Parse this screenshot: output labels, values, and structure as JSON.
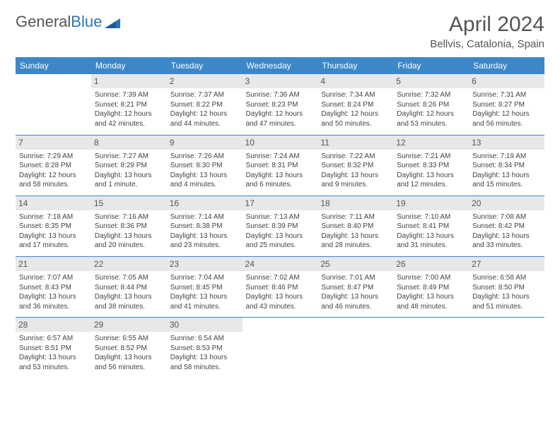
{
  "logo": {
    "text1": "General",
    "text2": "Blue"
  },
  "title": "April 2024",
  "subtitle": "Bellvis, Catalonia, Spain",
  "colors": {
    "header_bg": "#3b87c8",
    "header_fg": "#ffffff",
    "daynum_bg": "#e8e8e8",
    "border": "#3b87c8",
    "logo_blue": "#2f73b6"
  },
  "weekdays": [
    "Sunday",
    "Monday",
    "Tuesday",
    "Wednesday",
    "Thursday",
    "Friday",
    "Saturday"
  ],
  "weeks": [
    [
      {
        "day": "",
        "sunrise": "",
        "sunset": "",
        "daylight1": "",
        "daylight2": ""
      },
      {
        "day": "1",
        "sunrise": "Sunrise: 7:39 AM",
        "sunset": "Sunset: 8:21 PM",
        "daylight1": "Daylight: 12 hours",
        "daylight2": "and 42 minutes."
      },
      {
        "day": "2",
        "sunrise": "Sunrise: 7:37 AM",
        "sunset": "Sunset: 8:22 PM",
        "daylight1": "Daylight: 12 hours",
        "daylight2": "and 44 minutes."
      },
      {
        "day": "3",
        "sunrise": "Sunrise: 7:36 AM",
        "sunset": "Sunset: 8:23 PM",
        "daylight1": "Daylight: 12 hours",
        "daylight2": "and 47 minutes."
      },
      {
        "day": "4",
        "sunrise": "Sunrise: 7:34 AM",
        "sunset": "Sunset: 8:24 PM",
        "daylight1": "Daylight: 12 hours",
        "daylight2": "and 50 minutes."
      },
      {
        "day": "5",
        "sunrise": "Sunrise: 7:32 AM",
        "sunset": "Sunset: 8:26 PM",
        "daylight1": "Daylight: 12 hours",
        "daylight2": "and 53 minutes."
      },
      {
        "day": "6",
        "sunrise": "Sunrise: 7:31 AM",
        "sunset": "Sunset: 8:27 PM",
        "daylight1": "Daylight: 12 hours",
        "daylight2": "and 56 minutes."
      }
    ],
    [
      {
        "day": "7",
        "sunrise": "Sunrise: 7:29 AM",
        "sunset": "Sunset: 8:28 PM",
        "daylight1": "Daylight: 12 hours",
        "daylight2": "and 58 minutes."
      },
      {
        "day": "8",
        "sunrise": "Sunrise: 7:27 AM",
        "sunset": "Sunset: 8:29 PM",
        "daylight1": "Daylight: 13 hours",
        "daylight2": "and 1 minute."
      },
      {
        "day": "9",
        "sunrise": "Sunrise: 7:26 AM",
        "sunset": "Sunset: 8:30 PM",
        "daylight1": "Daylight: 13 hours",
        "daylight2": "and 4 minutes."
      },
      {
        "day": "10",
        "sunrise": "Sunrise: 7:24 AM",
        "sunset": "Sunset: 8:31 PM",
        "daylight1": "Daylight: 13 hours",
        "daylight2": "and 6 minutes."
      },
      {
        "day": "11",
        "sunrise": "Sunrise: 7:22 AM",
        "sunset": "Sunset: 8:32 PM",
        "daylight1": "Daylight: 13 hours",
        "daylight2": "and 9 minutes."
      },
      {
        "day": "12",
        "sunrise": "Sunrise: 7:21 AM",
        "sunset": "Sunset: 8:33 PM",
        "daylight1": "Daylight: 13 hours",
        "daylight2": "and 12 minutes."
      },
      {
        "day": "13",
        "sunrise": "Sunrise: 7:19 AM",
        "sunset": "Sunset: 8:34 PM",
        "daylight1": "Daylight: 13 hours",
        "daylight2": "and 15 minutes."
      }
    ],
    [
      {
        "day": "14",
        "sunrise": "Sunrise: 7:18 AM",
        "sunset": "Sunset: 8:35 PM",
        "daylight1": "Daylight: 13 hours",
        "daylight2": "and 17 minutes."
      },
      {
        "day": "15",
        "sunrise": "Sunrise: 7:16 AM",
        "sunset": "Sunset: 8:36 PM",
        "daylight1": "Daylight: 13 hours",
        "daylight2": "and 20 minutes."
      },
      {
        "day": "16",
        "sunrise": "Sunrise: 7:14 AM",
        "sunset": "Sunset: 8:38 PM",
        "daylight1": "Daylight: 13 hours",
        "daylight2": "and 23 minutes."
      },
      {
        "day": "17",
        "sunrise": "Sunrise: 7:13 AM",
        "sunset": "Sunset: 8:39 PM",
        "daylight1": "Daylight: 13 hours",
        "daylight2": "and 25 minutes."
      },
      {
        "day": "18",
        "sunrise": "Sunrise: 7:11 AM",
        "sunset": "Sunset: 8:40 PM",
        "daylight1": "Daylight: 13 hours",
        "daylight2": "and 28 minutes."
      },
      {
        "day": "19",
        "sunrise": "Sunrise: 7:10 AM",
        "sunset": "Sunset: 8:41 PM",
        "daylight1": "Daylight: 13 hours",
        "daylight2": "and 31 minutes."
      },
      {
        "day": "20",
        "sunrise": "Sunrise: 7:08 AM",
        "sunset": "Sunset: 8:42 PM",
        "daylight1": "Daylight: 13 hours",
        "daylight2": "and 33 minutes."
      }
    ],
    [
      {
        "day": "21",
        "sunrise": "Sunrise: 7:07 AM",
        "sunset": "Sunset: 8:43 PM",
        "daylight1": "Daylight: 13 hours",
        "daylight2": "and 36 minutes."
      },
      {
        "day": "22",
        "sunrise": "Sunrise: 7:05 AM",
        "sunset": "Sunset: 8:44 PM",
        "daylight1": "Daylight: 13 hours",
        "daylight2": "and 38 minutes."
      },
      {
        "day": "23",
        "sunrise": "Sunrise: 7:04 AM",
        "sunset": "Sunset: 8:45 PM",
        "daylight1": "Daylight: 13 hours",
        "daylight2": "and 41 minutes."
      },
      {
        "day": "24",
        "sunrise": "Sunrise: 7:02 AM",
        "sunset": "Sunset: 8:46 PM",
        "daylight1": "Daylight: 13 hours",
        "daylight2": "and 43 minutes."
      },
      {
        "day": "25",
        "sunrise": "Sunrise: 7:01 AM",
        "sunset": "Sunset: 8:47 PM",
        "daylight1": "Daylight: 13 hours",
        "daylight2": "and 46 minutes."
      },
      {
        "day": "26",
        "sunrise": "Sunrise: 7:00 AM",
        "sunset": "Sunset: 8:49 PM",
        "daylight1": "Daylight: 13 hours",
        "daylight2": "and 48 minutes."
      },
      {
        "day": "27",
        "sunrise": "Sunrise: 6:58 AM",
        "sunset": "Sunset: 8:50 PM",
        "daylight1": "Daylight: 13 hours",
        "daylight2": "and 51 minutes."
      }
    ],
    [
      {
        "day": "28",
        "sunrise": "Sunrise: 6:57 AM",
        "sunset": "Sunset: 8:51 PM",
        "daylight1": "Daylight: 13 hours",
        "daylight2": "and 53 minutes."
      },
      {
        "day": "29",
        "sunrise": "Sunrise: 6:55 AM",
        "sunset": "Sunset: 8:52 PM",
        "daylight1": "Daylight: 13 hours",
        "daylight2": "and 56 minutes."
      },
      {
        "day": "30",
        "sunrise": "Sunrise: 6:54 AM",
        "sunset": "Sunset: 8:53 PM",
        "daylight1": "Daylight: 13 hours",
        "daylight2": "and 58 minutes."
      },
      {
        "day": "",
        "sunrise": "",
        "sunset": "",
        "daylight1": "",
        "daylight2": ""
      },
      {
        "day": "",
        "sunrise": "",
        "sunset": "",
        "daylight1": "",
        "daylight2": ""
      },
      {
        "day": "",
        "sunrise": "",
        "sunset": "",
        "daylight1": "",
        "daylight2": ""
      },
      {
        "day": "",
        "sunrise": "",
        "sunset": "",
        "daylight1": "",
        "daylight2": ""
      }
    ]
  ]
}
